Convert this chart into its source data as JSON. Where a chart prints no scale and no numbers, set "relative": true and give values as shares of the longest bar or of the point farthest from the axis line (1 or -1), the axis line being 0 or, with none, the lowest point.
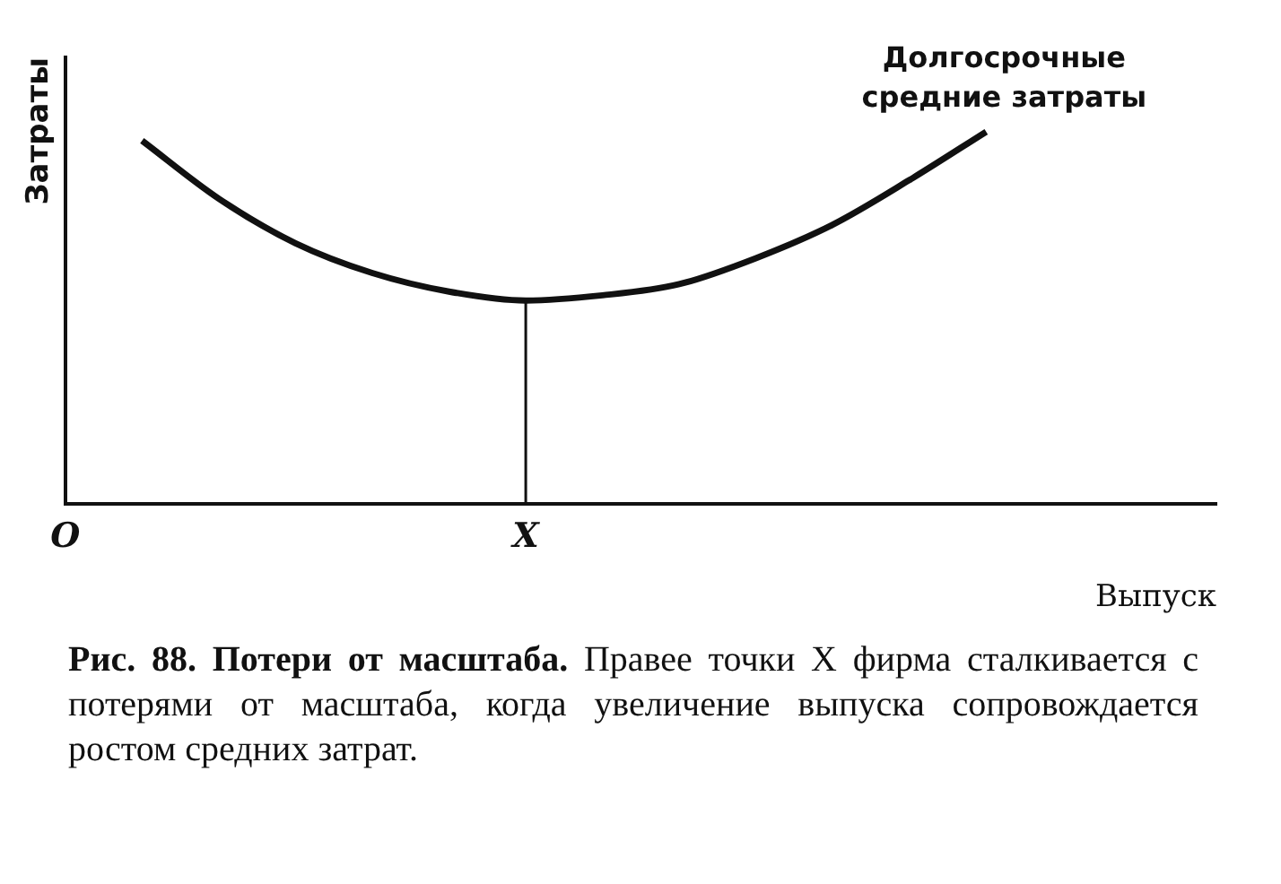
{
  "chart_data": {
    "type": "line",
    "relative": true,
    "title": "Рис. 88. Потери от масштаба.",
    "xlabel": "Выпуск",
    "ylabel": "Затраты",
    "categories": [
      "O",
      null,
      null,
      null,
      null,
      null,
      "X",
      null,
      null,
      null,
      null,
      null,
      null,
      null,
      null,
      null
    ],
    "series": [
      {
        "color": "#111111",
        "values": [
          null,
          0.976,
          0.82,
          0.7,
          0.62,
          0.57,
          0.546,
          0.56,
          0.59,
          0.66,
          0.75,
          0.87,
          1.0,
          null,
          null,
          null
        ]
      }
    ],
    "ref_lines": [
      {
        "axis": "x",
        "value": "X",
        "color": "#111111"
      }
    ],
    "annotations": [
      "Долгосрочные\nсредние затраты",
      "Правее точки X фирма сталкивается с потерями от масштаба, когда увеличение выпуска сопровождается ростом средних затрат."
    ],
    "grid": false,
    "legend": false,
    "marker": "none",
    "line_style": "solid"
  }
}
